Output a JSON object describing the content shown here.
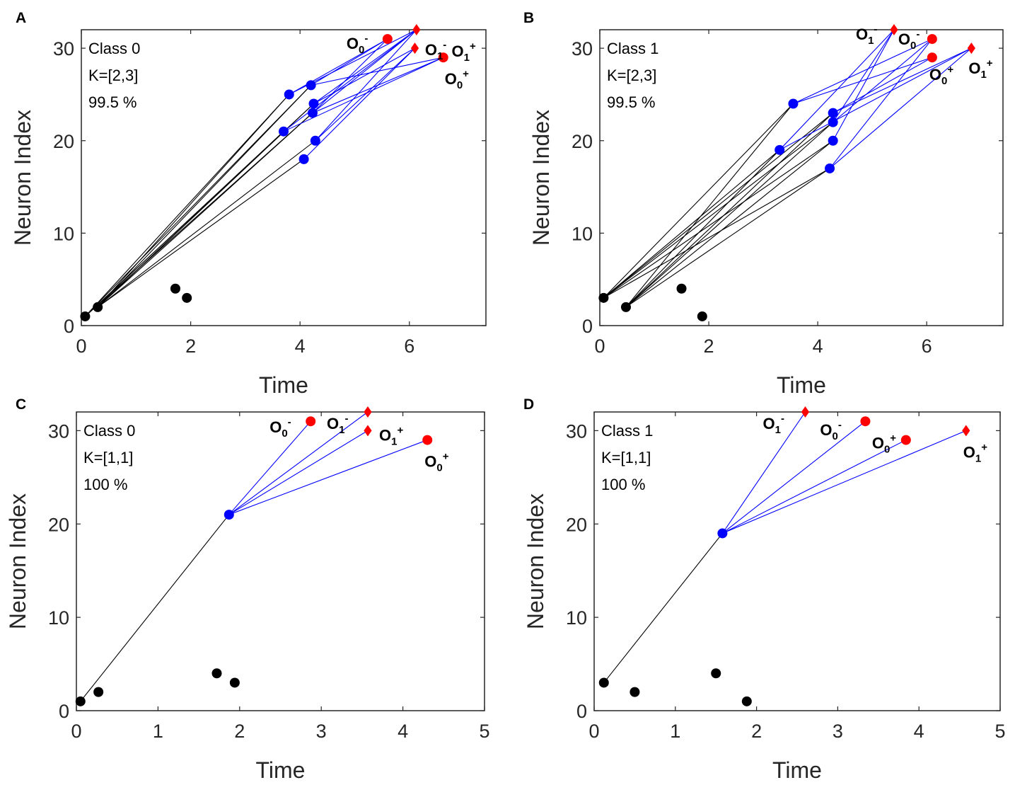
{
  "colors": {
    "input": "#000000",
    "hidden": "#0000ff",
    "output": "#ff0000",
    "edge_in": "#000000",
    "edge_hidden": "#0000ff"
  },
  "chart_data": [
    {
      "type": "scatter",
      "panel": "A",
      "xlabel": "Time",
      "ylabel": "Neuron Index",
      "xlim": [
        0,
        7.4
      ],
      "ylim": [
        0,
        32
      ],
      "xticks": [
        0,
        2,
        4,
        6
      ],
      "yticks": [
        0,
        10,
        20,
        30
      ],
      "info": [
        "Class 0",
        "K=[2,3]",
        "99.5 %"
      ],
      "points": [
        {
          "id": "i1",
          "x": 0.07,
          "y": 1,
          "role": "input"
        },
        {
          "id": "i2",
          "x": 0.3,
          "y": 2,
          "role": "input"
        },
        {
          "id": "i3",
          "x": 1.93,
          "y": 3,
          "role": "input"
        },
        {
          "id": "i4",
          "x": 1.72,
          "y": 4,
          "role": "input"
        },
        {
          "id": "h25",
          "x": 3.8,
          "y": 25,
          "role": "hidden"
        },
        {
          "id": "h26",
          "x": 4.2,
          "y": 26,
          "role": "hidden"
        },
        {
          "id": "h24",
          "x": 4.25,
          "y": 24,
          "role": "hidden"
        },
        {
          "id": "h23",
          "x": 4.23,
          "y": 23,
          "role": "hidden"
        },
        {
          "id": "h21",
          "x": 3.7,
          "y": 21,
          "role": "hidden"
        },
        {
          "id": "h20",
          "x": 4.28,
          "y": 20,
          "role": "hidden"
        },
        {
          "id": "h18",
          "x": 4.07,
          "y": 18,
          "role": "hidden"
        },
        {
          "id": "o0m",
          "x": 5.6,
          "y": 31,
          "role": "output",
          "marker": "circle"
        },
        {
          "id": "o1m",
          "x": 6.13,
          "y": 32,
          "role": "output",
          "marker": "diamond"
        },
        {
          "id": "o1p",
          "x": 6.1,
          "y": 30,
          "role": "output",
          "marker": "diamond"
        },
        {
          "id": "o0p",
          "x": 6.62,
          "y": 29,
          "role": "output",
          "marker": "circle"
        }
      ],
      "edges": [
        [
          "i1",
          "h25"
        ],
        [
          "i1",
          "h26"
        ],
        [
          "i1",
          "h24"
        ],
        [
          "i1",
          "h23"
        ],
        [
          "i1",
          "h21"
        ],
        [
          "i2",
          "h25"
        ],
        [
          "i2",
          "h26"
        ],
        [
          "i2",
          "h24"
        ],
        [
          "i2",
          "h23"
        ],
        [
          "i2",
          "h21"
        ],
        [
          "i2",
          "h20"
        ],
        [
          "i2",
          "h18"
        ],
        [
          "h25",
          "o0m"
        ],
        [
          "h25",
          "o1m"
        ],
        [
          "h26",
          "o0m"
        ],
        [
          "h26",
          "o0p"
        ],
        [
          "h24",
          "o1m"
        ],
        [
          "h24",
          "o1p"
        ],
        [
          "h23",
          "o0m"
        ],
        [
          "h23",
          "o0p"
        ],
        [
          "h23",
          "o1m"
        ],
        [
          "h21",
          "o1m"
        ],
        [
          "h21",
          "o0p"
        ],
        [
          "h20",
          "o1p"
        ],
        [
          "h20",
          "o1m"
        ],
        [
          "h18",
          "o1p"
        ]
      ],
      "labels": [
        {
          "target": "o0m",
          "base": "O",
          "sub": "0",
          "sup": "-",
          "dx": -58,
          "dy": 14
        },
        {
          "target": "o1m",
          "base": "O",
          "sub": "1",
          "sup": "-",
          "dx": 12,
          "dy": 36
        },
        {
          "target": "o1p",
          "base": "O",
          "sub": "1",
          "sup": "+",
          "dx": 52,
          "dy": 12
        },
        {
          "target": "o0p",
          "base": "O",
          "sub": "0",
          "sup": "+",
          "dx": 2,
          "dy": 38
        }
      ]
    },
    {
      "type": "scatter",
      "panel": "B",
      "xlabel": "Time",
      "ylabel": "Neuron Index",
      "xlim": [
        0,
        7.4
      ],
      "ylim": [
        0,
        32
      ],
      "xticks": [
        0,
        2,
        4,
        6
      ],
      "yticks": [
        0,
        10,
        20,
        30
      ],
      "info": [
        "Class 1",
        "K=[2,3]",
        "99.5 %"
      ],
      "points": [
        {
          "id": "i3",
          "x": 0.07,
          "y": 3,
          "role": "input"
        },
        {
          "id": "i2",
          "x": 0.48,
          "y": 2,
          "role": "input"
        },
        {
          "id": "i4",
          "x": 1.5,
          "y": 4,
          "role": "input"
        },
        {
          "id": "i1",
          "x": 1.88,
          "y": 1,
          "role": "input"
        },
        {
          "id": "h24",
          "x": 3.55,
          "y": 24,
          "role": "hidden"
        },
        {
          "id": "h19",
          "x": 3.3,
          "y": 19,
          "role": "hidden"
        },
        {
          "id": "h23",
          "x": 4.28,
          "y": 23,
          "role": "hidden"
        },
        {
          "id": "h22",
          "x": 4.28,
          "y": 22,
          "role": "hidden"
        },
        {
          "id": "h20",
          "x": 4.28,
          "y": 20,
          "role": "hidden"
        },
        {
          "id": "h17",
          "x": 4.22,
          "y": 17,
          "role": "hidden"
        },
        {
          "id": "o1m",
          "x": 5.4,
          "y": 32,
          "role": "output",
          "marker": "diamond"
        },
        {
          "id": "o0m",
          "x": 6.1,
          "y": 31,
          "role": "output",
          "marker": "circle"
        },
        {
          "id": "o0p",
          "x": 6.1,
          "y": 29,
          "role": "output",
          "marker": "circle"
        },
        {
          "id": "o1p",
          "x": 6.82,
          "y": 30,
          "role": "output",
          "marker": "diamond"
        }
      ],
      "edges": [
        [
          "i3",
          "h24"
        ],
        [
          "i3",
          "h19"
        ],
        [
          "i3",
          "h23"
        ],
        [
          "i3",
          "h22"
        ],
        [
          "i3",
          "h20"
        ],
        [
          "i3",
          "h17"
        ],
        [
          "i2",
          "h24"
        ],
        [
          "i2",
          "h19"
        ],
        [
          "i2",
          "h23"
        ],
        [
          "i2",
          "h22"
        ],
        [
          "i2",
          "h20"
        ],
        [
          "i2",
          "h17"
        ],
        [
          "h24",
          "o0m"
        ],
        [
          "h24",
          "o0p"
        ],
        [
          "h19",
          "o1m"
        ],
        [
          "h19",
          "o1p"
        ],
        [
          "h23",
          "o0p"
        ],
        [
          "h23",
          "o1p"
        ],
        [
          "h22",
          "o0m"
        ],
        [
          "h22",
          "o1m"
        ],
        [
          "h20",
          "o1m"
        ],
        [
          "h17",
          "o0m"
        ],
        [
          "h17",
          "o1p"
        ]
      ],
      "labels": [
        {
          "target": "o1m",
          "base": "O",
          "sub": "1",
          "sup": "-",
          "dx": -54,
          "dy": 14
        },
        {
          "target": "o0m",
          "base": "O",
          "sub": "0",
          "sup": "-",
          "dx": -48,
          "dy": 8
        },
        {
          "target": "o0p",
          "base": "O",
          "sub": "0",
          "sup": "+",
          "dx": -4,
          "dy": 32
        },
        {
          "target": "o1p",
          "base": "O",
          "sub": "1",
          "sup": "+",
          "dx": -4,
          "dy": 36
        }
      ]
    },
    {
      "type": "scatter",
      "panel": "C",
      "xlabel": "Time",
      "ylabel": "Neuron Index",
      "xlim": [
        0,
        5
      ],
      "ylim": [
        0,
        32
      ],
      "xticks": [
        0,
        1,
        2,
        3,
        4,
        5
      ],
      "yticks": [
        0,
        10,
        20,
        30
      ],
      "info": [
        "Class 0",
        "K=[1,1]",
        "100 %"
      ],
      "points": [
        {
          "id": "i1",
          "x": 0.05,
          "y": 1,
          "role": "input"
        },
        {
          "id": "i2",
          "x": 0.27,
          "y": 2,
          "role": "input"
        },
        {
          "id": "i4",
          "x": 1.72,
          "y": 4,
          "role": "input"
        },
        {
          "id": "i3",
          "x": 1.94,
          "y": 3,
          "role": "input"
        },
        {
          "id": "h21",
          "x": 1.87,
          "y": 21,
          "role": "hidden"
        },
        {
          "id": "o0m",
          "x": 2.87,
          "y": 31,
          "role": "output",
          "marker": "circle"
        },
        {
          "id": "o1m",
          "x": 3.57,
          "y": 32,
          "role": "output",
          "marker": "diamond"
        },
        {
          "id": "o1p",
          "x": 3.57,
          "y": 30,
          "role": "output",
          "marker": "diamond"
        },
        {
          "id": "o0p",
          "x": 4.3,
          "y": 29,
          "role": "output",
          "marker": "circle"
        }
      ],
      "edges": [
        [
          "i1",
          "h21"
        ],
        [
          "h21",
          "o0m"
        ],
        [
          "h21",
          "o1m"
        ],
        [
          "h21",
          "o1p"
        ],
        [
          "h21",
          "o0p"
        ]
      ],
      "labels": [
        {
          "target": "o0m",
          "base": "O",
          "sub": "0",
          "sup": "-",
          "dx": -58,
          "dy": 16
        },
        {
          "target": "o1m",
          "base": "O",
          "sub": "1",
          "sup": "-",
          "dx": -58,
          "dy": 24
        },
        {
          "target": "o1p",
          "base": "O",
          "sub": "1",
          "sup": "+",
          "dx": 16,
          "dy": 14
        },
        {
          "target": "o0p",
          "base": "O",
          "sub": "0",
          "sup": "+",
          "dx": -4,
          "dy": 38
        }
      ]
    },
    {
      "type": "scatter",
      "panel": "D",
      "xlabel": "Time",
      "ylabel": "Neuron Index",
      "xlim": [
        0,
        5
      ],
      "ylim": [
        0,
        32
      ],
      "xticks": [
        0,
        1,
        2,
        3,
        4,
        5
      ],
      "yticks": [
        0,
        10,
        20,
        30
      ],
      "info": [
        "Class 1",
        "K=[1,1]",
        "100 %"
      ],
      "points": [
        {
          "id": "i3",
          "x": 0.12,
          "y": 3,
          "role": "input"
        },
        {
          "id": "i2",
          "x": 0.5,
          "y": 2,
          "role": "input"
        },
        {
          "id": "i4",
          "x": 1.5,
          "y": 4,
          "role": "input"
        },
        {
          "id": "i1",
          "x": 1.88,
          "y": 1,
          "role": "input"
        },
        {
          "id": "h19",
          "x": 1.58,
          "y": 19,
          "role": "hidden"
        },
        {
          "id": "o1m",
          "x": 2.6,
          "y": 32,
          "role": "output",
          "marker": "diamond"
        },
        {
          "id": "o0m",
          "x": 3.34,
          "y": 31,
          "role": "output",
          "marker": "circle"
        },
        {
          "id": "o0p",
          "x": 3.84,
          "y": 29,
          "role": "output",
          "marker": "circle"
        },
        {
          "id": "o1p",
          "x": 4.58,
          "y": 30,
          "role": "output",
          "marker": "diamond"
        }
      ],
      "edges": [
        [
          "i3",
          "h19"
        ],
        [
          "h19",
          "o1m"
        ],
        [
          "h19",
          "o0m"
        ],
        [
          "h19",
          "o0p"
        ],
        [
          "h19",
          "o1p"
        ]
      ],
      "labels": [
        {
          "target": "o1m",
          "base": "O",
          "sub": "1",
          "sup": "-",
          "dx": -60,
          "dy": 24
        },
        {
          "target": "o0m",
          "base": "O",
          "sub": "0",
          "sup": "-",
          "dx": -64,
          "dy": 20
        },
        {
          "target": "o0p",
          "base": "O",
          "sub": "0",
          "sup": "+",
          "dx": -48,
          "dy": 12
        },
        {
          "target": "o1p",
          "base": "O",
          "sub": "1",
          "sup": "+",
          "dx": -4,
          "dy": 38
        }
      ]
    }
  ]
}
